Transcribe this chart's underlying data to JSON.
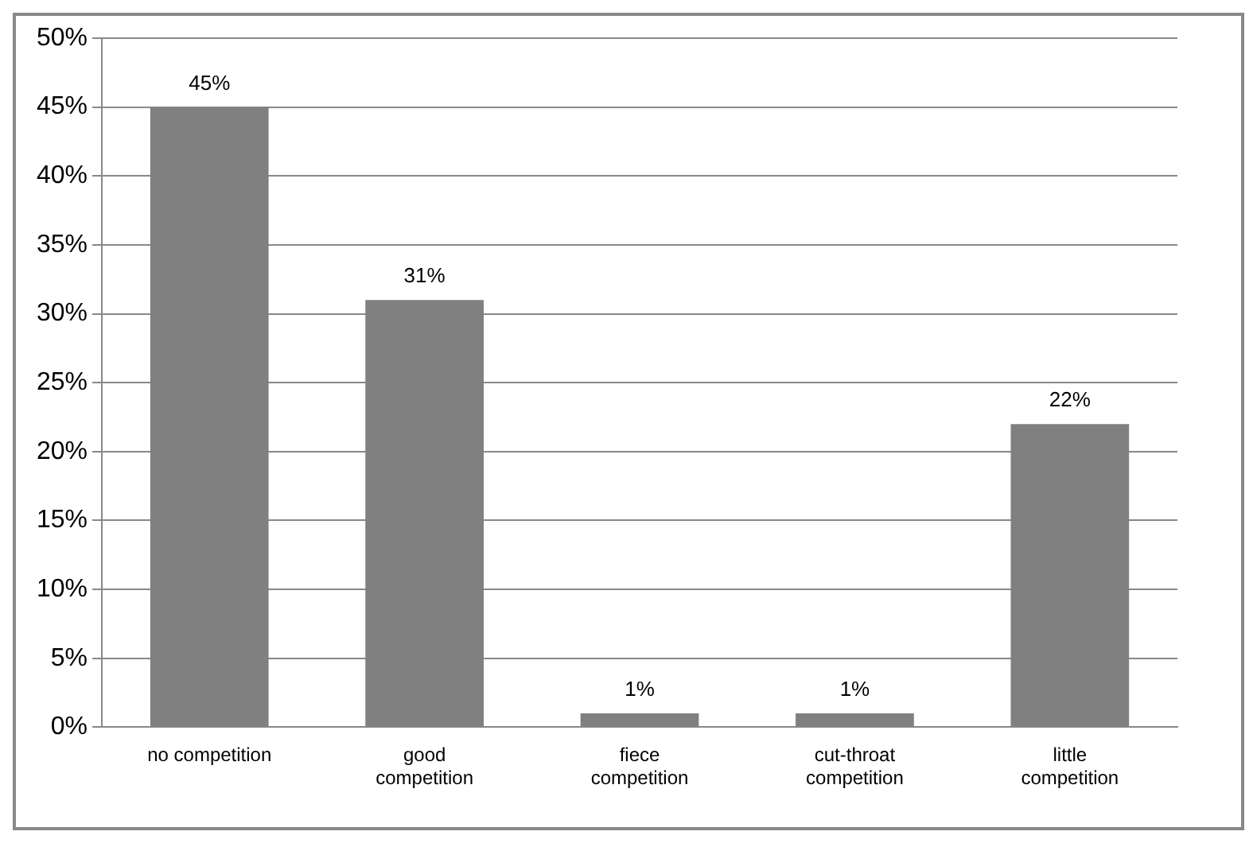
{
  "chart_data": {
    "type": "bar",
    "categories": [
      "no competition",
      "good competition",
      "fiece competition",
      "cut-throat competition",
      "little competition"
    ],
    "values": [
      45,
      31,
      1,
      1,
      22
    ],
    "value_labels": [
      "45%",
      "31%",
      "1%",
      "1%",
      "22%"
    ],
    "color": "#808080",
    "ylim": [
      0,
      50
    ],
    "yticks": [
      {
        "value": 0,
        "label": "0%"
      },
      {
        "value": 5,
        "label": "5%"
      },
      {
        "value": 10,
        "label": "10%"
      },
      {
        "value": 15,
        "label": "15%"
      },
      {
        "value": 20,
        "label": "20%"
      },
      {
        "value": 25,
        "label": "25%"
      },
      {
        "value": 30,
        "label": "30%"
      },
      {
        "value": 35,
        "label": "35%"
      },
      {
        "value": 40,
        "label": "40%"
      },
      {
        "value": 45,
        "label": "45%"
      },
      {
        "value": 50,
        "label": "50%"
      }
    ],
    "grid": "y",
    "legend": false
  }
}
